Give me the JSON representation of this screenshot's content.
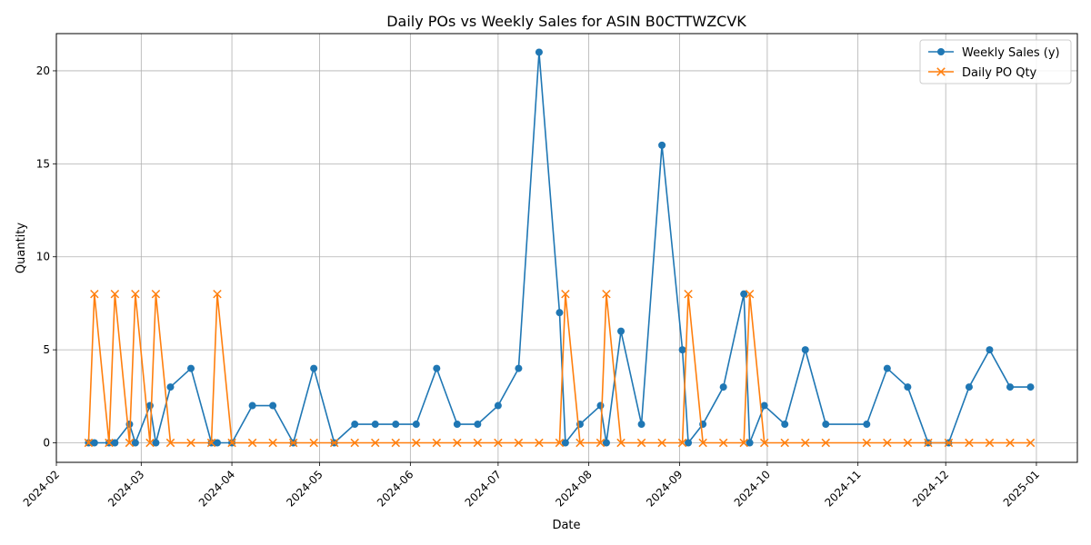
{
  "chart_data": {
    "type": "line",
    "title": "Daily POs vs Weekly Sales for ASIN B0CTTWZCVK",
    "xlabel": "Date",
    "ylabel": "Quantity",
    "x_range": [
      "2024-02-01",
      "2025-01-15"
    ],
    "ylim": [
      -1.05,
      22
    ],
    "grid": true,
    "legend_position": "top-right",
    "x_ticks": [
      "2024-02",
      "2024-03",
      "2024-04",
      "2024-05",
      "2024-06",
      "2024-07",
      "2024-08",
      "2024-09",
      "2024-10",
      "2024-11",
      "2024-12",
      "2025-01"
    ],
    "x_tick_dates": [
      "2024-02-01",
      "2024-03-01",
      "2024-04-01",
      "2024-05-01",
      "2024-06-01",
      "2024-07-01",
      "2024-08-01",
      "2024-09-01",
      "2024-10-01",
      "2024-11-01",
      "2024-12-01",
      "2025-01-01"
    ],
    "y_ticks": [
      0,
      5,
      10,
      15,
      20
    ],
    "series": [
      {
        "name": "Weekly Sales (y)",
        "color": "#1f77b4",
        "marker": "circle",
        "points": [
          [
            "2024-02-12",
            0
          ],
          [
            "2024-02-14",
            0
          ],
          [
            "2024-02-19",
            0
          ],
          [
            "2024-02-21",
            0
          ],
          [
            "2024-02-26",
            1
          ],
          [
            "2024-02-28",
            0
          ],
          [
            "2024-03-04",
            2
          ],
          [
            "2024-03-06",
            0
          ],
          [
            "2024-03-11",
            3
          ],
          [
            "2024-03-18",
            4
          ],
          [
            "2024-03-25",
            0
          ],
          [
            "2024-03-27",
            0
          ],
          [
            "2024-04-01",
            0
          ],
          [
            "2024-04-08",
            2
          ],
          [
            "2024-04-15",
            2
          ],
          [
            "2024-04-22",
            0
          ],
          [
            "2024-04-29",
            4
          ],
          [
            "2024-05-06",
            0
          ],
          [
            "2024-05-13",
            1
          ],
          [
            "2024-05-20",
            1
          ],
          [
            "2024-05-27",
            1
          ],
          [
            "2024-06-03",
            1
          ],
          [
            "2024-06-10",
            4
          ],
          [
            "2024-06-17",
            1
          ],
          [
            "2024-06-24",
            1
          ],
          [
            "2024-07-01",
            2
          ],
          [
            "2024-07-08",
            4
          ],
          [
            "2024-07-15",
            21
          ],
          [
            "2024-07-22",
            7
          ],
          [
            "2024-07-24",
            0
          ],
          [
            "2024-07-29",
            1
          ],
          [
            "2024-08-05",
            2
          ],
          [
            "2024-08-07",
            0
          ],
          [
            "2024-08-12",
            6
          ],
          [
            "2024-08-19",
            1
          ],
          [
            "2024-08-26",
            16
          ],
          [
            "2024-09-02",
            5
          ],
          [
            "2024-09-04",
            0
          ],
          [
            "2024-09-09",
            1
          ],
          [
            "2024-09-16",
            3
          ],
          [
            "2024-09-23",
            8
          ],
          [
            "2024-09-25",
            0
          ],
          [
            "2024-09-30",
            2
          ],
          [
            "2024-10-07",
            1
          ],
          [
            "2024-10-14",
            5
          ],
          [
            "2024-10-21",
            1
          ],
          [
            "2024-11-04",
            1
          ],
          [
            "2024-11-11",
            4
          ],
          [
            "2024-11-18",
            3
          ],
          [
            "2024-11-25",
            0
          ],
          [
            "2024-12-02",
            0
          ],
          [
            "2024-12-09",
            3
          ],
          [
            "2024-12-16",
            5
          ],
          [
            "2024-12-23",
            3
          ],
          [
            "2024-12-30",
            3
          ]
        ]
      },
      {
        "name": "Daily PO Qty",
        "color": "#ff7f0e",
        "marker": "x",
        "points": [
          [
            "2024-02-12",
            0
          ],
          [
            "2024-02-14",
            8
          ],
          [
            "2024-02-19",
            0
          ],
          [
            "2024-02-21",
            8
          ],
          [
            "2024-02-26",
            0
          ],
          [
            "2024-02-28",
            8
          ],
          [
            "2024-03-04",
            0
          ],
          [
            "2024-03-06",
            8
          ],
          [
            "2024-03-11",
            0
          ],
          [
            "2024-03-18",
            0
          ],
          [
            "2024-03-25",
            0
          ],
          [
            "2024-03-27",
            8
          ],
          [
            "2024-04-01",
            0
          ],
          [
            "2024-04-08",
            0
          ],
          [
            "2024-04-15",
            0
          ],
          [
            "2024-04-22",
            0
          ],
          [
            "2024-04-29",
            0
          ],
          [
            "2024-05-06",
            0
          ],
          [
            "2024-05-13",
            0
          ],
          [
            "2024-05-20",
            0
          ],
          [
            "2024-05-27",
            0
          ],
          [
            "2024-06-03",
            0
          ],
          [
            "2024-06-10",
            0
          ],
          [
            "2024-06-17",
            0
          ],
          [
            "2024-06-24",
            0
          ],
          [
            "2024-07-01",
            0
          ],
          [
            "2024-07-08",
            0
          ],
          [
            "2024-07-15",
            0
          ],
          [
            "2024-07-22",
            0
          ],
          [
            "2024-07-24",
            8
          ],
          [
            "2024-07-29",
            0
          ],
          [
            "2024-08-05",
            0
          ],
          [
            "2024-08-07",
            8
          ],
          [
            "2024-08-12",
            0
          ],
          [
            "2024-08-19",
            0
          ],
          [
            "2024-08-26",
            0
          ],
          [
            "2024-09-02",
            0
          ],
          [
            "2024-09-04",
            8
          ],
          [
            "2024-09-09",
            0
          ],
          [
            "2024-09-16",
            0
          ],
          [
            "2024-09-23",
            0
          ],
          [
            "2024-09-25",
            8
          ],
          [
            "2024-09-30",
            0
          ],
          [
            "2024-10-07",
            0
          ],
          [
            "2024-10-14",
            0
          ],
          [
            "2024-10-21",
            0
          ],
          [
            "2024-11-04",
            0
          ],
          [
            "2024-11-11",
            0
          ],
          [
            "2024-11-18",
            0
          ],
          [
            "2024-11-25",
            0
          ],
          [
            "2024-12-02",
            0
          ],
          [
            "2024-12-09",
            0
          ],
          [
            "2024-12-16",
            0
          ],
          [
            "2024-12-23",
            0
          ],
          [
            "2024-12-30",
            0
          ]
        ]
      }
    ]
  }
}
